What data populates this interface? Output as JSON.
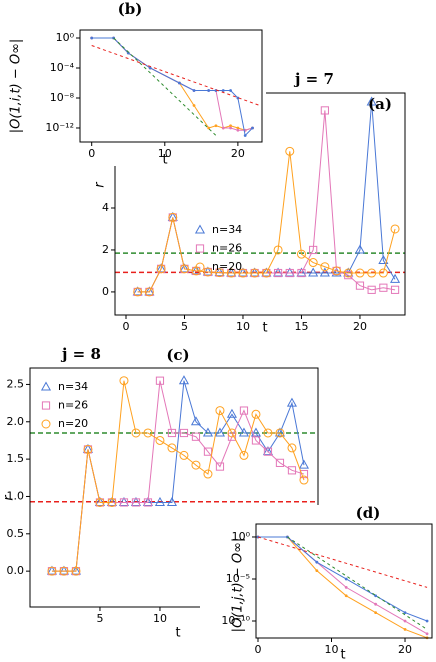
{
  "chart_data": [
    {
      "type": "line",
      "title": "j = 7",
      "label": "(a)",
      "xlabel": "t",
      "ylabel": "r",
      "x": [
        1,
        2,
        3,
        4,
        5,
        6,
        7,
        8,
        9,
        10,
        11,
        12,
        13,
        14,
        15,
        16,
        17,
        18,
        19,
        20,
        21,
        22,
        23
      ],
      "series": [
        {
          "name": "n=34",
          "color": "#4a78d6",
          "marker": "triangle",
          "values": [
            0,
            0,
            1.1,
            3.55,
            1.1,
            1.0,
            0.95,
            0.92,
            0.9,
            0.9,
            0.9,
            0.9,
            0.9,
            0.9,
            0.9,
            0.9,
            0.9,
            0.9,
            0.9,
            2.0,
            9.05,
            1.5,
            0.6
          ]
        },
        {
          "name": "n=26",
          "color": "#e377b8",
          "marker": "square",
          "values": [
            0,
            0,
            1.1,
            3.55,
            1.1,
            1.0,
            0.95,
            0.92,
            0.9,
            0.9,
            0.9,
            0.9,
            0.9,
            0.9,
            0.9,
            2.0,
            8.65,
            1.0,
            0.8,
            0.3,
            0.1,
            0.2,
            0.1
          ]
        },
        {
          "name": "n=20",
          "color": "#ffa11f",
          "marker": "circle",
          "values": [
            0,
            0,
            1.1,
            3.55,
            1.1,
            1.0,
            0.95,
            0.92,
            0.9,
            0.9,
            0.9,
            0.9,
            2.0,
            6.7,
            1.8,
            1.4,
            1.2,
            1.0,
            0.9,
            0.9,
            0.9,
            0.9,
            3.0
          ]
        }
      ],
      "hlines": [
        {
          "value": 1.85,
          "color": "#2e8b2e"
        },
        {
          "value": 0.93,
          "color": "#e8201c"
        }
      ],
      "xlim": [
        -0.94,
        23.85
      ],
      "ylim": [
        -1.1,
        9.48
      ],
      "xticks": [
        0,
        5,
        10,
        15,
        20
      ],
      "yticks": [
        0,
        2,
        4
      ],
      "legend": "center left"
    },
    {
      "type": "line",
      "label": "(b)",
      "xlabel": "t",
      "ylabel": "|O(1,i,t) − O∞|",
      "yscale": "log",
      "series": [
        {
          "color": "#ffa11f",
          "marker": "dot",
          "x": [
            0,
            3,
            5,
            8,
            12,
            14,
            16,
            17,
            18,
            19,
            20,
            21,
            22
          ],
          "values": [
            1,
            1,
            0.01,
            0.0001,
            1e-06,
            1e-09,
            1e-12,
            2e-12,
            1e-12,
            2e-12,
            1e-12,
            5e-13,
            1e-12
          ]
        },
        {
          "color": "#e377b8",
          "marker": "dot",
          "x": [
            0,
            3,
            5,
            8,
            12,
            14,
            16,
            17,
            18,
            19,
            20,
            21,
            22
          ],
          "values": [
            1,
            1,
            0.01,
            0.0001,
            1e-06,
            1e-07,
            1e-07,
            1e-07,
            1e-12,
            1e-12,
            5e-13,
            5e-13,
            1e-12
          ]
        },
        {
          "color": "#4a78d6",
          "marker": "dot",
          "x": [
            0,
            3,
            5,
            8,
            12,
            14,
            16,
            17,
            18,
            19,
            20,
            21,
            22
          ],
          "values": [
            1,
            1,
            0.01,
            0.0001,
            1e-06,
            1e-07,
            1e-07,
            1e-07,
            1e-07,
            1e-07,
            1e-08,
            1e-13,
            1e-12
          ]
        },
        {
          "color": "#2e8b2e",
          "linestyle": "dashed",
          "x": [
            3,
            17
          ],
          "values": [
            1,
            1e-13
          ]
        },
        {
          "color": "#e8201c",
          "linestyle": "dashed",
          "x": [
            0,
            23
          ],
          "values": [
            0.1,
            1e-09
          ]
        }
      ],
      "xlim": [
        -1.6,
        23.3
      ],
      "ylim": [
        1.35e-14,
        11.7
      ],
      "xticks": [
        0,
        10,
        20
      ],
      "yticks": [
        {
          "value": 1,
          "label": "10⁰"
        },
        {
          "value": 0.0001,
          "label": "10⁻⁴"
        },
        {
          "value": 1e-08,
          "label": "10⁻⁸"
        },
        {
          "value": 1e-12,
          "label": "10⁻¹²"
        }
      ]
    },
    {
      "type": "line",
      "title": "j = 8",
      "label": "(c)",
      "xlabel": "t",
      "ylabel": "r",
      "x": [
        1,
        2,
        3,
        4,
        5,
        6,
        7,
        8,
        9,
        10,
        11,
        12,
        13,
        14,
        15,
        16,
        17,
        18,
        19,
        20,
        21,
        22
      ],
      "series": [
        {
          "name": "n=34",
          "color": "#4a78d6",
          "marker": "triangle",
          "values": [
            0,
            0,
            0,
            1.63,
            0.92,
            0.92,
            0.92,
            0.92,
            0.92,
            0.92,
            0.92,
            2.55,
            2.0,
            1.85,
            1.85,
            2.1,
            1.85,
            1.85,
            1.6,
            1.85,
            2.25,
            1.42
          ]
        },
        {
          "name": "n=26",
          "color": "#e377b8",
          "marker": "square",
          "values": [
            0,
            0,
            0,
            1.63,
            0.92,
            0.92,
            0.92,
            0.92,
            0.92,
            2.55,
            1.85,
            1.85,
            1.8,
            1.6,
            1.4,
            1.8,
            2.15,
            1.75,
            1.6,
            1.45,
            1.35,
            1.3
          ]
        },
        {
          "name": "n=20",
          "color": "#ffa11f",
          "marker": "circle",
          "values": [
            0,
            0,
            0,
            1.63,
            0.92,
            0.92,
            2.55,
            1.85,
            1.85,
            1.75,
            1.65,
            1.55,
            1.42,
            1.3,
            2.15,
            1.85,
            1.55,
            2.1,
            1.85,
            1.85,
            1.65,
            1.22
          ]
        }
      ],
      "hlines": [
        {
          "value": 1.85,
          "color": "#2e8b2e"
        },
        {
          "value": 0.93,
          "color": "#e8201c"
        }
      ],
      "xlim": [
        -0.83,
        23.17
      ],
      "ylim": [
        -0.48,
        2.72
      ],
      "xticks": [
        5,
        10
      ],
      "yticks": [
        {
          "value": 0,
          "label": "0.0"
        },
        {
          "value": 0.5,
          "label": "0.5"
        },
        {
          "value": 1,
          "label": "1.0"
        },
        {
          "value": 1.5,
          "label": "1.5"
        },
        {
          "value": 2,
          "label": "2.0"
        },
        {
          "value": 2.5,
          "label": "2.5"
        }
      ],
      "legend": "upper left"
    },
    {
      "type": "line",
      "label": "(d)",
      "xlabel": "t",
      "ylabel": "|O(1,j,t) − O∞|",
      "yscale": "log",
      "series": [
        {
          "color": "#ffa11f",
          "marker": "dot",
          "x": [
            0,
            4,
            8,
            12,
            16,
            20,
            23
          ],
          "values": [
            1,
            1,
            0.0001,
            1e-07,
            1e-09,
            1e-11,
            1e-12
          ]
        },
        {
          "color": "#e377b8",
          "marker": "dot",
          "x": [
            0,
            4,
            8,
            12,
            16,
            20,
            23
          ],
          "values": [
            1,
            1,
            0.001,
            1e-06,
            1e-08,
            1e-10,
            3e-12
          ]
        },
        {
          "color": "#4a78d6",
          "marker": "dot",
          "x": [
            0,
            4,
            8,
            12,
            16,
            20,
            23
          ],
          "values": [
            1,
            1,
            0.001,
            1e-05,
            1e-07,
            1e-09,
            1e-10
          ]
        },
        {
          "color": "#2e8b2e",
          "linestyle": "dashed",
          "x": [
            4,
            23
          ],
          "values": [
            1,
            1e-11
          ]
        },
        {
          "color": "#e8201c",
          "linestyle": "dashed",
          "x": [
            0,
            23
          ],
          "values": [
            1,
            1e-06
          ]
        }
      ],
      "xlim": [
        -0.27,
        23.67
      ],
      "ylim": [
        9.5e-13,
        35
      ],
      "xticks": [
        0,
        10,
        20
      ],
      "yticks": [
        {
          "value": 1,
          "label": "10⁰"
        },
        {
          "value": 1e-05,
          "label": "10⁻⁵"
        },
        {
          "value": 1e-10,
          "label": "10⁻¹⁰"
        }
      ]
    }
  ]
}
